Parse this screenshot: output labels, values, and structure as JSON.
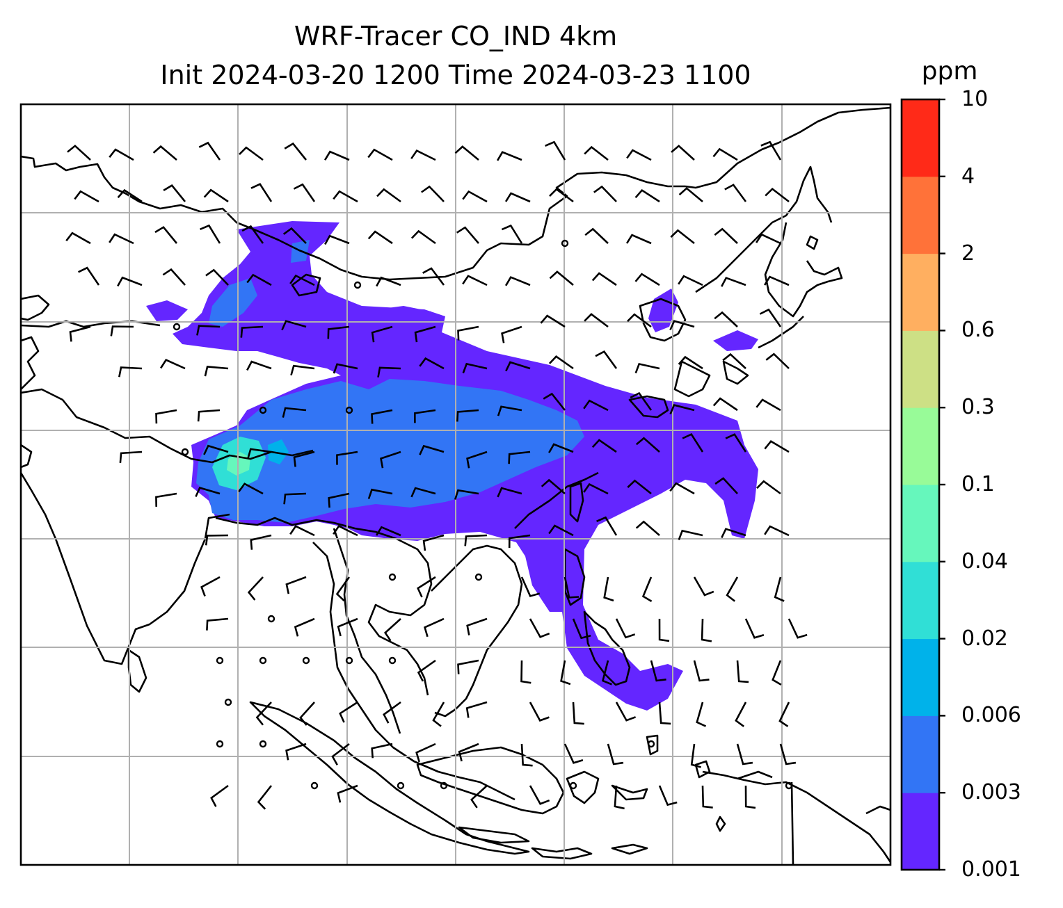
{
  "title": {
    "line1": "WRF-Tracer CO_IND 4km",
    "line2": "Init 2024-03-20 1200 Time 2024-03-23 1100"
  },
  "colorbar": {
    "unit": "ppm",
    "levels": [
      "0.001",
      "0.003",
      "0.006",
      "0.02",
      "0.04",
      "0.1",
      "0.3",
      "0.6",
      "2",
      "4",
      "10"
    ],
    "colors": [
      "#6426FF",
      "#3275F5",
      "#00B2EA",
      "#30DFD6",
      "#66F7BC",
      "#98FB98",
      "#CDE085",
      "#FFAF60",
      "#FF7239",
      "#FF2A18"
    ]
  },
  "map": {
    "gridlines": true,
    "frame_color": "#000000",
    "grid_color": "#b0b0b0",
    "land_outline_color": "#000000",
    "wind_barb_color": "#000000"
  }
}
